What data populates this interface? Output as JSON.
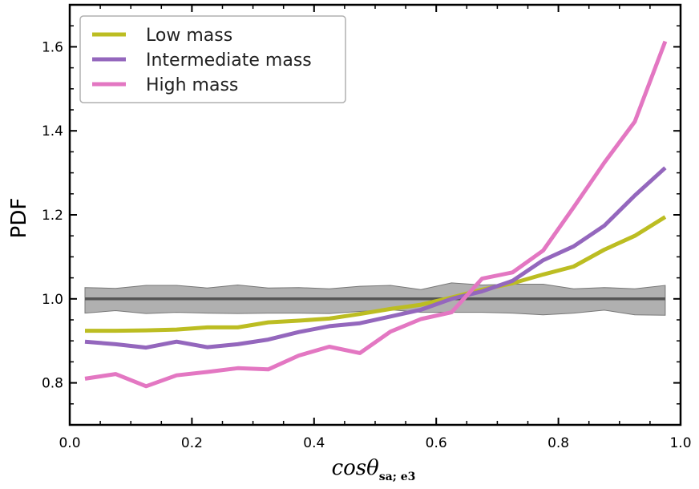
{
  "chart_data": {
    "type": "line",
    "title": "",
    "xlabel": "cosθ",
    "xlabel_subscript": "sa; e3",
    "ylabel": "PDF",
    "xlim": [
      0.0,
      1.0
    ],
    "ylim": [
      0.7,
      1.7
    ],
    "xticks": [
      0.0,
      0.2,
      0.4,
      0.6,
      0.8,
      1.0
    ],
    "xtick_labels": [
      "0.0",
      "0.2",
      "0.4",
      "0.6",
      "0.8",
      "1.0"
    ],
    "yticks": [
      0.8,
      1.0,
      1.2,
      1.4,
      1.6
    ],
    "ytick_labels": [
      "0.8",
      "1.0",
      "1.2",
      "1.4",
      "1.6"
    ],
    "x": [
      0.025,
      0.075,
      0.125,
      0.175,
      0.225,
      0.275,
      0.325,
      0.375,
      0.425,
      0.475,
      0.525,
      0.575,
      0.625,
      0.675,
      0.725,
      0.775,
      0.825,
      0.875,
      0.925,
      0.975
    ],
    "series": [
      {
        "name": "Low mass",
        "color": "#bcbd22",
        "values": [
          0.924,
          0.924,
          0.925,
          0.927,
          0.932,
          0.932,
          0.944,
          0.948,
          0.953,
          0.964,
          0.976,
          0.986,
          1.003,
          1.022,
          1.037,
          1.058,
          1.077,
          1.117,
          1.15,
          1.195
        ]
      },
      {
        "name": "Intermediate mass",
        "color": "#9467bd",
        "values": [
          0.898,
          0.892,
          0.884,
          0.898,
          0.885,
          0.892,
          0.903,
          0.921,
          0.935,
          0.942,
          0.958,
          0.974,
          1.0,
          1.018,
          1.043,
          1.092,
          1.125,
          1.174,
          1.246,
          1.312
        ]
      },
      {
        "name": "High mass",
        "color": "#e377c2",
        "values": [
          0.81,
          0.821,
          0.792,
          0.818,
          0.826,
          0.835,
          0.832,
          0.865,
          0.886,
          0.871,
          0.922,
          0.952,
          0.968,
          1.048,
          1.063,
          1.115,
          1.218,
          1.324,
          1.422,
          1.613
        ]
      }
    ],
    "random_band": {
      "center": 1.0,
      "color": "#555555",
      "fill_color": "#b0b0b0",
      "upper": [
        1.027,
        1.025,
        1.032,
        1.032,
        1.026,
        1.033,
        1.026,
        1.027,
        1.024,
        1.03,
        1.032,
        1.022,
        1.038,
        1.033,
        1.035,
        1.035,
        1.024,
        1.027,
        1.024,
        1.032
      ],
      "lower": [
        0.966,
        0.972,
        0.965,
        0.968,
        0.966,
        0.965,
        0.966,
        0.966,
        0.965,
        0.97,
        0.974,
        0.968,
        0.968,
        0.968,
        0.966,
        0.962,
        0.966,
        0.973,
        0.962,
        0.961
      ]
    },
    "legend_position": "top-left",
    "grid": false
  }
}
